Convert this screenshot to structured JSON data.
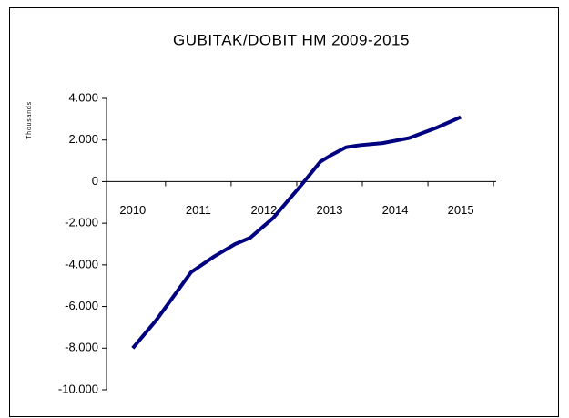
{
  "chart_data": {
    "type": "line",
    "title": "GUBITAK/DOBIT HM 2009-2015",
    "y_label": "Thousands",
    "x": [
      2010,
      2010.36,
      2010.89,
      2011.24,
      2011.56,
      2011.79,
      2012.14,
      2012.56,
      2012.86,
      2013.04,
      2013.25,
      2013.46,
      2013.81,
      2014.22,
      2014.64,
      2015
    ],
    "series": [
      {
        "color": "#000080",
        "values": [
          -8000,
          -6650,
          -4350,
          -3600,
          -3000,
          -2700,
          -1750,
          -200,
          960,
          1300,
          1650,
          1750,
          1850,
          2100,
          2600,
          3100
        ]
      }
    ],
    "xlim": [
      2009.6,
      2015.54
    ],
    "xticks": [
      2010,
      2011,
      2012,
      2013,
      2014,
      2015
    ],
    "ylim": [
      -10000,
      4000
    ],
    "yticks": [
      {
        "value": -10000,
        "label": "-10.000"
      },
      {
        "value": -8000,
        "label": "-8.000"
      },
      {
        "value": -6000,
        "label": "-6.000"
      },
      {
        "value": -4000,
        "label": "-4.000"
      },
      {
        "value": -2000,
        "label": "-2.000"
      },
      0,
      {
        "value": 2000,
        "label": "2.000"
      },
      {
        "value": 4000,
        "label": "4.000"
      }
    ],
    "grid": false
  }
}
